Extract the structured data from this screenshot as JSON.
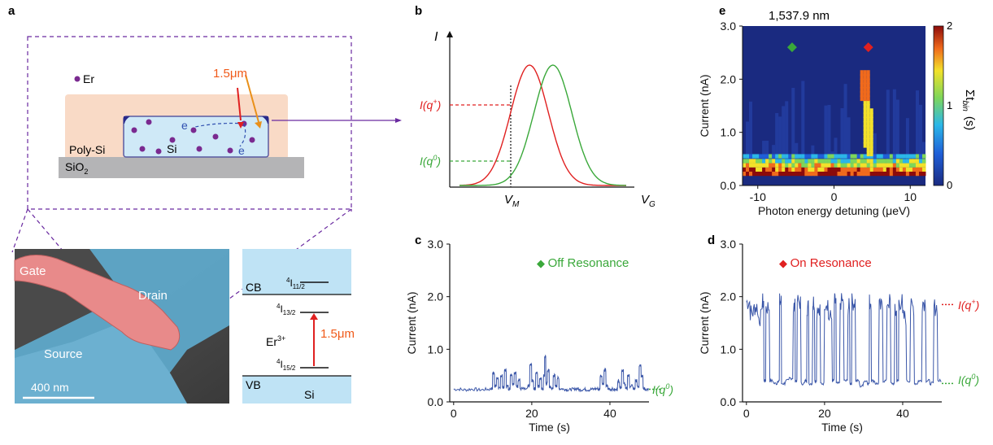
{
  "figure": {
    "panel_a": {
      "label": "a",
      "legend_er": "Er",
      "wavelength": "1.5μm",
      "electron": "e",
      "poly_si": "Poly-Si",
      "si": "Si",
      "sio2": "SiO",
      "sio2_sub": "2",
      "sem": {
        "gate": "Gate",
        "drain": "Drain",
        "source": "Source",
        "scale": "400 nm"
      },
      "band": {
        "cb": "CB",
        "vb": "VB",
        "si": "Si",
        "er": "Er",
        "er_sup": "3+",
        "wavelength": "1.5μm",
        "level_top": "I",
        "level_top_sup": "4",
        "level_top_sub": "11/2",
        "level_mid": "I",
        "level_mid_sup": "4",
        "level_mid_sub": "13/2",
        "level_bot": "I",
        "level_bot_sup": "4",
        "level_bot_sub": "15/2"
      }
    },
    "panel_b": {
      "label": "b",
      "y_axis": "I",
      "x_axis": "V",
      "x_axis_sub": "G",
      "vm": "V",
      "vm_sub": "M",
      "i_plus": "I(q",
      "i_plus_sup": "+",
      "i_zero": "I(q",
      "i_zero_sup": "0",
      "close_paren": ")"
    },
    "panel_c": {
      "label": "c",
      "legend": "Off Resonance",
      "trace_label": "I(q",
      "trace_sup": "0",
      "close_paren": ")"
    },
    "panel_d": {
      "label": "d",
      "legend": "On Resonance",
      "trace_plus": "I(q",
      "trace_plus_sup": "+",
      "trace_zero": "I(q",
      "trace_zero_sup": "0",
      "close_paren": ")"
    },
    "panel_e": {
      "label": "e",
      "title": "1,537.9 nm",
      "colorbar_label": "Σt",
      "colorbar_sub": "bin",
      "colorbar_unit": "(s)"
    }
  },
  "chart_data": [
    {
      "id": "c",
      "type": "line",
      "xlabel": "Time (s)",
      "ylabel": "Current (nA)",
      "xlim": [
        -1,
        50
      ],
      "ylim": [
        0,
        3
      ],
      "xticks": [
        "0",
        "20",
        "40"
      ],
      "xtick_values": [
        0,
        20,
        40
      ],
      "yticks": [
        "0.0",
        "1.0",
        "2.0",
        "3.0"
      ],
      "ytick_values": [
        0,
        1,
        2,
        3
      ],
      "series": [
        {
          "color": "#3a56a8",
          "x": [
            0,
            2,
            4,
            6,
            8,
            9.5,
            10,
            10.5,
            11,
            11.5,
            12,
            12.5,
            13,
            13.5,
            14,
            14.5,
            15,
            15.5,
            16,
            16.5,
            17,
            18,
            19,
            19.5,
            20,
            20.5,
            21,
            21.5,
            22,
            22.5,
            23,
            23.3,
            23.6,
            24,
            24.5,
            25,
            25.5,
            26,
            26.5,
            27,
            28,
            29,
            30,
            31,
            32,
            33,
            34,
            35,
            36,
            37,
            37.5,
            38,
            38.5,
            39,
            39.5,
            40,
            41,
            42,
            42.5,
            43,
            43.5,
            44,
            44.5,
            45,
            46,
            46.5,
            47,
            47.5,
            48,
            48.5,
            49,
            50
          ],
          "y": [
            0.24,
            0.23,
            0.24,
            0.23,
            0.24,
            0.25,
            0.55,
            0.3,
            0.45,
            0.25,
            0.5,
            0.28,
            0.6,
            0.3,
            0.25,
            0.52,
            0.35,
            0.55,
            0.3,
            0.42,
            0.25,
            0.24,
            0.3,
            0.7,
            0.4,
            0.25,
            0.55,
            0.3,
            0.45,
            0.25,
            0.5,
            0.85,
            0.35,
            0.6,
            0.28,
            0.25,
            0.5,
            0.3,
            0.45,
            0.25,
            0.24,
            0.23,
            0.24,
            0.25,
            0.23,
            0.24,
            0.23,
            0.24,
            0.25,
            0.24,
            0.5,
            0.35,
            0.6,
            0.3,
            0.25,
            0.24,
            0.23,
            0.4,
            0.28,
            0.6,
            0.35,
            0.25,
            0.5,
            0.3,
            0.24,
            0.4,
            0.3,
            0.7,
            0.5,
            0.25,
            0.24,
            0.24
          ]
        }
      ]
    },
    {
      "id": "d",
      "type": "line",
      "xlabel": "Time (s)",
      "ylabel": "Current (nA)",
      "xlim": [
        -1,
        50
      ],
      "ylim": [
        0,
        3
      ],
      "xticks": [
        "0",
        "20",
        "40"
      ],
      "xtick_values": [
        0,
        20,
        40
      ],
      "yticks": [
        "0.0",
        "1.0",
        "2.0",
        "3.0"
      ],
      "ytick_values": [
        0,
        1,
        2,
        3
      ],
      "series": [
        {
          "color": "#3a56a8",
          "x": [
            0,
            1,
            2,
            3,
            4,
            4.5,
            5,
            6,
            7,
            8,
            8.5,
            9,
            10,
            11,
            12,
            12.5,
            13,
            14,
            15,
            15.5,
            16,
            17,
            17.5,
            18,
            19,
            20,
            21,
            22,
            22.5,
            23,
            24,
            25,
            26,
            26.5,
            27,
            28,
            29,
            30,
            31,
            31.5,
            32,
            33,
            34,
            35,
            36,
            37,
            38,
            38.5,
            39,
            40,
            41,
            42,
            43,
            44,
            45,
            46,
            47,
            48,
            49,
            50
          ],
          "y": [
            1.9,
            1.7,
            1.8,
            1.6,
            1.9,
            0.4,
            1.8,
            0.4,
            0.35,
            0.4,
            1.9,
            0.35,
            0.4,
            0.45,
            1.8,
            0.4,
            1.9,
            0.35,
            0.4,
            1.8,
            0.35,
            1.9,
            0.4,
            1.7,
            0.35,
            1.9,
            1.6,
            0.4,
            1.9,
            0.35,
            1.9,
            0.4,
            1.8,
            0.35,
            1.9,
            0.4,
            0.3,
            0.4,
            0.35,
            1.9,
            0.4,
            0.35,
            1.8,
            0.4,
            1.9,
            0.35,
            1.7,
            0.4,
            1.9,
            1.6,
            0.4,
            1.8,
            0.35,
            0.4,
            1.9,
            0.4,
            0.35,
            1.8,
            0.4,
            0.35
          ]
        }
      ]
    },
    {
      "id": "e",
      "type": "heatmap",
      "title": "1,537.9 nm",
      "xlabel": "Photon energy detuning (μeV)",
      "ylabel": "Current (nA)",
      "xlim": [
        -12,
        12
      ],
      "ylim": [
        0,
        3
      ],
      "xticks": [
        "-10",
        "0",
        "10"
      ],
      "xtick_values": [
        -10,
        0,
        10
      ],
      "yticks": [
        "0.0",
        "1.0",
        "2.0",
        "3.0"
      ],
      "ytick_values": [
        0,
        1,
        2,
        3
      ],
      "colorbar": {
        "min": 0,
        "max": 2,
        "ticks": [
          "0",
          "1",
          "2"
        ]
      },
      "markers": [
        {
          "x": -5.5,
          "y": 2.6,
          "color": "#3aa83a",
          "label": "Off Resonance"
        },
        {
          "x": 4.5,
          "y": 2.6,
          "color": "#e02020",
          "label": "On Resonance"
        }
      ]
    },
    {
      "id": "b",
      "type": "line",
      "series": [
        {
          "color": "#e02020",
          "peak_position": 0.42
        },
        {
          "color": "#3aa83a",
          "peak_position": 0.56
        }
      ]
    }
  ]
}
